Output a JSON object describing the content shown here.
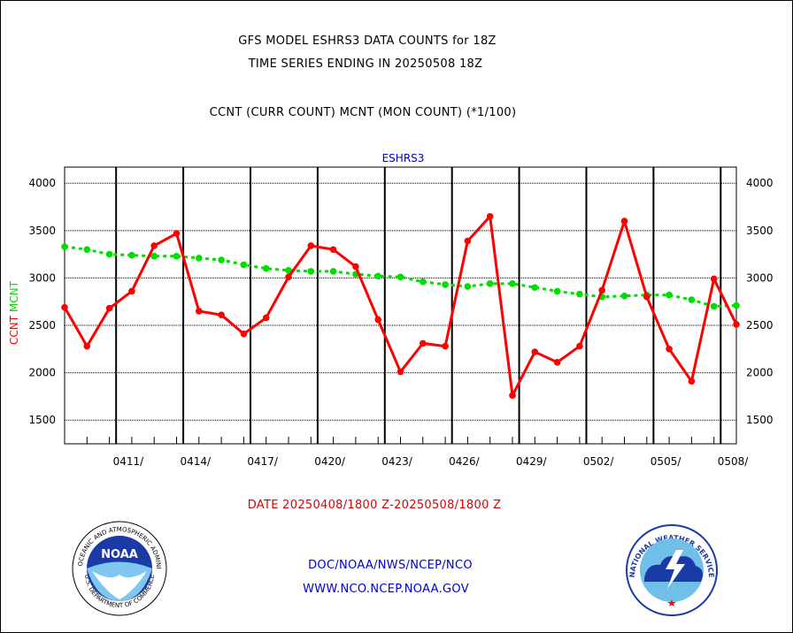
{
  "header": {
    "line1": "GFS MODEL ESHRS3 DATA COUNTS for 18Z",
    "line2": "TIME SERIES ENDING IN 20250508 18Z",
    "line3": "CCNT (CURR COUNT) MCNT (MON COUNT) (*1/100)"
  },
  "footer": {
    "date_range": "DATE 20250408/1800 Z-20250508/1800 Z",
    "org_path": "DOC/NOAA/NWS/NCEP/NCO",
    "website": "WWW.NCO.NCEP.NOAA.GOV"
  },
  "logos": {
    "noaa_text": "NOAA",
    "noaa_ring_top": "NATIONAL OCEANIC AND ATMOSPHERIC ADMINISTRATION",
    "noaa_ring_bottom": "U.S. DEPARTMENT OF COMMERCE",
    "nws_ring": "NATIONAL WEATHER SERVICE"
  },
  "colors": {
    "ccnt": "#ff0000",
    "mcnt": "#00dd00",
    "title_blue": "#0000cc",
    "footer_red": "#dd0000",
    "footer_blue": "#0000cc"
  },
  "chart_data": {
    "type": "line",
    "title": "ESHRS3",
    "ylabel_parts": [
      {
        "text": "CCNT",
        "color": "#ff0000"
      },
      {
        "text": "MCNT",
        "color": "#00dd00"
      }
    ],
    "xlim": [
      0,
      30
    ],
    "ylim": [
      1250,
      4170
    ],
    "yticks": [
      1500,
      2000,
      2500,
      3000,
      3500,
      4000
    ],
    "xtick_labels": [
      {
        "x": 3,
        "label": "0411/"
      },
      {
        "x": 6,
        "label": "0414/"
      },
      {
        "x": 9,
        "label": "0417/"
      },
      {
        "x": 12,
        "label": "0420/"
      },
      {
        "x": 15,
        "label": "0423/"
      },
      {
        "x": 18,
        "label": "0426/"
      },
      {
        "x": 21,
        "label": "0429/"
      },
      {
        "x": 24,
        "label": "0502/"
      },
      {
        "x": 27,
        "label": "0505/"
      },
      {
        "x": 30,
        "label": "0508/"
      }
    ],
    "major_vlines": [
      2.3,
      5.3,
      8.3,
      11.3,
      14.3,
      17.3,
      20.3,
      23.3,
      26.3,
      29.3
    ],
    "grid": true,
    "series": [
      {
        "name": "CCNT",
        "color": "#ff0000",
        "values": [
          2690,
          2280,
          2680,
          2860,
          3340,
          3470,
          2650,
          2610,
          2410,
          2580,
          3010,
          3340,
          3300,
          3120,
          2560,
          2010,
          2310,
          2280,
          3390,
          3650,
          1760,
          2220,
          2110,
          2280,
          2870,
          3600,
          2800,
          2250,
          1910,
          2990,
          2510
        ]
      },
      {
        "name": "MCNT",
        "color": "#00dd00",
        "values": [
          3330,
          3300,
          3250,
          3240,
          3230,
          3230,
          3210,
          3190,
          3140,
          3100,
          3080,
          3070,
          3070,
          3040,
          3020,
          3010,
          2960,
          2930,
          2910,
          2940,
          2940,
          2900,
          2860,
          2830,
          2800,
          2810,
          2820,
          2820,
          2770,
          2700,
          2710
        ]
      }
    ]
  }
}
